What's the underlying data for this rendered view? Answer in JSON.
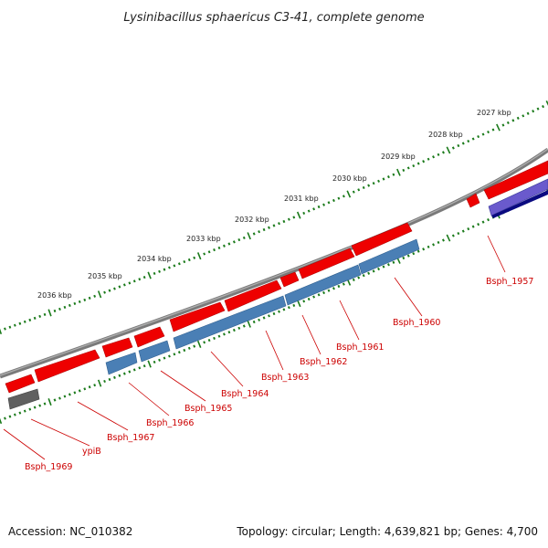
{
  "title": "Lysinibacillus sphaericus C3-41, complete genome",
  "footer": {
    "accession": "Accession: NC_010382",
    "summary": "Topology: circular; Length: 4,639,821 bp; Genes: 4,700"
  },
  "colors": {
    "forward_gene": "#ee0000",
    "reverse_cds": "#4a7fb5",
    "pseudo": "#606060",
    "rna": "#3a3aa8",
    "backbone": "#808080",
    "tick": "#1a7a1a",
    "label": "#cc0000"
  },
  "kbp_ticks": [
    "2027 kbp",
    "2028 kbp",
    "2029 kbp",
    "2030 kbp",
    "2031 kbp",
    "2032 kbp",
    "2033 kbp",
    "2034 kbp",
    "2035 kbp",
    "2036 kbp"
  ],
  "gene_labels": [
    "Bsph_1957",
    "Bsph_1960",
    "Bsph_1961",
    "Bsph_1962",
    "Bsph_1963",
    "Bsph_1964",
    "Bsph_1965",
    "Bsph_1966",
    "Bsph_1967",
    "ypiB",
    "Bsph_1969"
  ]
}
